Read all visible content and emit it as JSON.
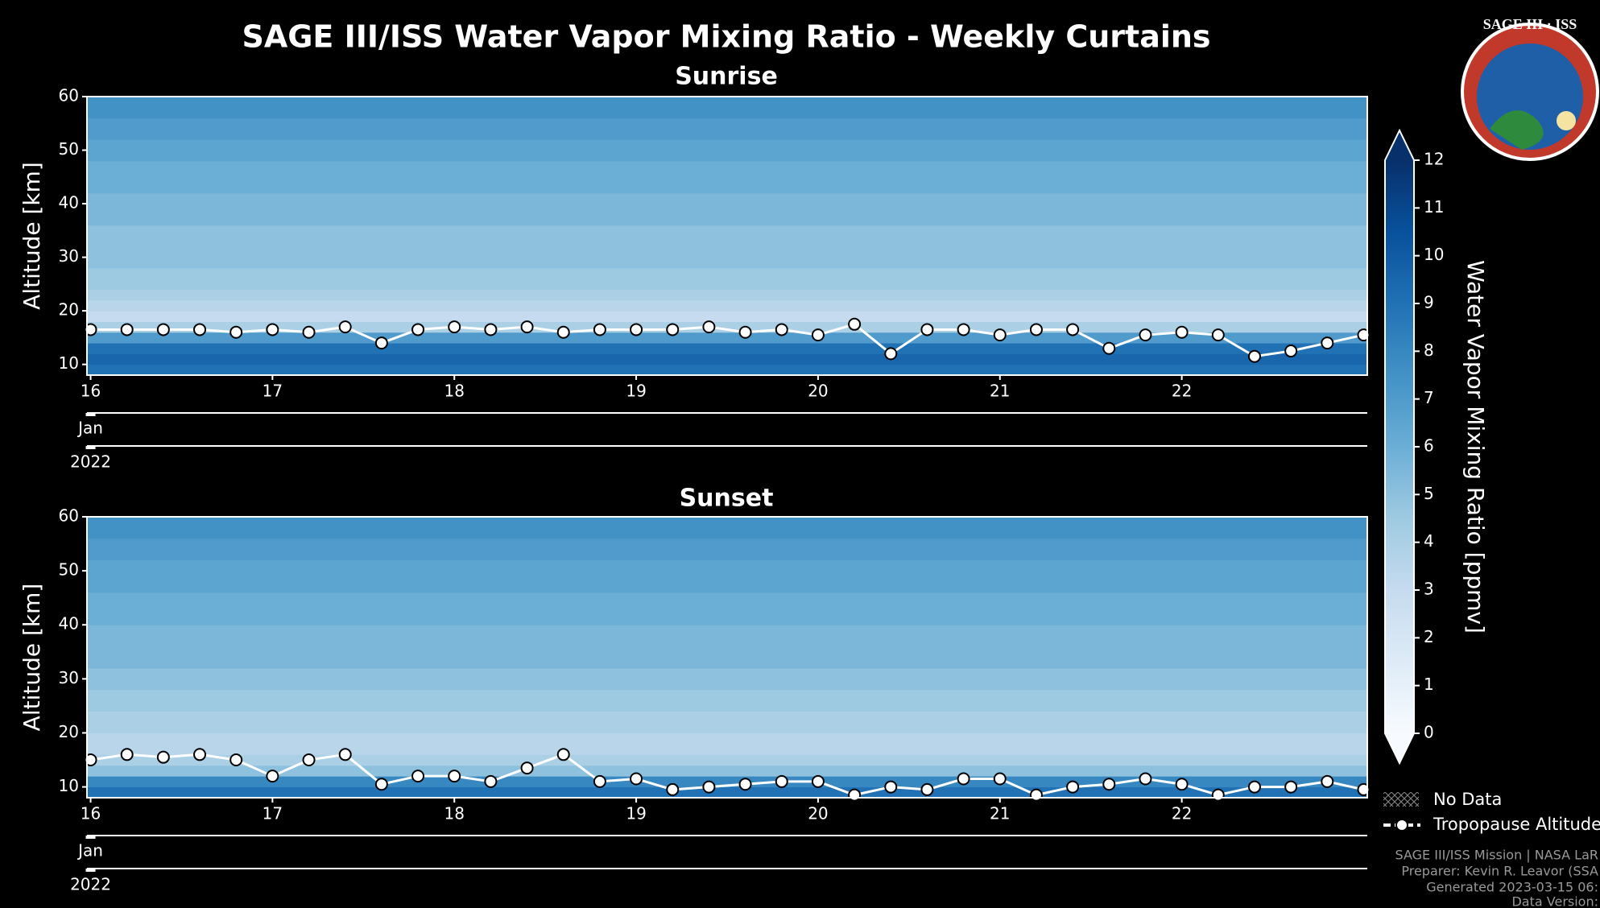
{
  "title": "SAGE III/ISS Water Vapor Mixing Ratio - Weekly Curtains",
  "chart_data": [
    {
      "type": "heatmap",
      "title": "Sunrise",
      "ylabel": "Altitude [km]",
      "xlim": [
        15.98,
        23.02
      ],
      "xticks": [
        16,
        17,
        18,
        19,
        20,
        21,
        22
      ],
      "ylim": [
        8,
        60
      ],
      "yticks": [
        10,
        20,
        30,
        40,
        50,
        60
      ],
      "month_label": "Jan",
      "year_label": "2022",
      "altitude_bins": [
        8,
        10,
        12,
        14,
        16,
        18,
        20,
        22,
        24,
        26,
        28,
        30,
        32,
        34,
        36,
        38,
        40,
        42,
        44,
        46,
        48,
        50,
        52,
        54,
        56,
        58,
        60
      ],
      "values": [
        9,
        9.5,
        9,
        7,
        4,
        3,
        3.5,
        4,
        4.5,
        4.5,
        5,
        5,
        5,
        5,
        5.5,
        5.5,
        5.5,
        6,
        6,
        6,
        6.5,
        6.5,
        7,
        7,
        7.5,
        7.5
      ],
      "tropopause": {
        "x": [
          16.0,
          16.2,
          16.4,
          16.6,
          16.8,
          17.0,
          17.2,
          17.4,
          17.6,
          17.8,
          18.0,
          18.2,
          18.4,
          18.6,
          18.8,
          19.0,
          19.2,
          19.4,
          19.6,
          19.8,
          20.0,
          20.2,
          20.4,
          20.6,
          20.8,
          21.0,
          21.2,
          21.4,
          21.6,
          21.8,
          22.0,
          22.2,
          22.4,
          22.6,
          22.8,
          23.0
        ],
        "values": [
          16.5,
          16.5,
          16.5,
          16.5,
          16,
          16.5,
          16,
          17,
          14,
          16.5,
          17,
          16.5,
          17,
          16,
          16.5,
          16.5,
          16.5,
          17,
          16,
          16.5,
          15.5,
          17.5,
          12,
          16.5,
          16.5,
          15.5,
          16.5,
          16.5,
          13,
          15.5,
          16,
          15.5,
          11.5,
          12.5,
          14,
          15.5
        ]
      }
    },
    {
      "type": "heatmap",
      "title": "Sunset",
      "ylabel": "Altitude [km]",
      "xlim": [
        15.98,
        23.02
      ],
      "xticks": [
        16,
        17,
        18,
        19,
        20,
        21,
        22
      ],
      "ylim": [
        8,
        60
      ],
      "yticks": [
        10,
        20,
        30,
        40,
        50,
        60
      ],
      "month_label": "Jan",
      "year_label": "2022",
      "altitude_bins": [
        8,
        10,
        12,
        14,
        16,
        18,
        20,
        22,
        24,
        26,
        28,
        30,
        32,
        34,
        36,
        38,
        40,
        42,
        44,
        46,
        48,
        50,
        52,
        54,
        56,
        58,
        60
      ],
      "values": [
        9,
        8,
        5,
        4,
        3.5,
        3.5,
        4,
        4,
        4.5,
        4.5,
        5,
        5,
        5.5,
        5.5,
        5.5,
        5.5,
        6,
        6,
        6,
        6.5,
        6.5,
        6.5,
        7,
        7,
        7.5,
        7.5
      ],
      "tropopause": {
        "x": [
          16.0,
          16.2,
          16.4,
          16.6,
          16.8,
          17.0,
          17.2,
          17.4,
          17.6,
          17.8,
          18.0,
          18.2,
          18.4,
          18.6,
          18.8,
          19.0,
          19.2,
          19.4,
          19.6,
          19.8,
          20.0,
          20.2,
          20.4,
          20.6,
          20.8,
          21.0,
          21.2,
          21.4,
          21.6,
          21.8,
          22.0,
          22.2,
          22.4,
          22.6,
          22.8,
          23.0
        ],
        "values": [
          15,
          16,
          15.5,
          16,
          15,
          12,
          15,
          16,
          10.5,
          12,
          12,
          11,
          13.5,
          16,
          11,
          11.5,
          9.5,
          10,
          10.5,
          11,
          11,
          8.5,
          10,
          9.5,
          11.5,
          11.5,
          8.5,
          10,
          10.5,
          11.5,
          10.5,
          8.5,
          10,
          10,
          11,
          9.5
        ]
      }
    }
  ],
  "colorbar": {
    "label": "Water Vapor Mixing Ratio [ppmv]",
    "vlim": [
      0,
      12
    ],
    "ticks": [
      0,
      1,
      2,
      3,
      4,
      5,
      6,
      7,
      8,
      9,
      10,
      11,
      12
    ],
    "colormap": [
      "#f7fbff",
      "#deebf7",
      "#c6dbef",
      "#9ecae1",
      "#6baed6",
      "#4292c6",
      "#2171b5",
      "#08519c",
      "#08306b"
    ]
  },
  "legend": [
    "No Data",
    "Tropopause Altitude"
  ],
  "footer": [
    "SAGE III/ISS Mission | NASA LaR",
    "Preparer: Kevin R. Leavor (SSA",
    "Generated 2023-03-15 06:",
    "Data Version:"
  ],
  "logo": "SAGE III · ISS"
}
